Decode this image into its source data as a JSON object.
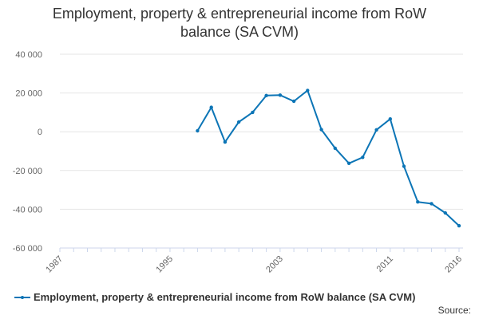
{
  "chart_data": {
    "type": "line",
    "title_lines": [
      "Employment, property & entrepreneurial income from RoW",
      "balance (SA CVM)"
    ],
    "series": [
      {
        "name": "Employment, property & entrepreneurial income from RoW balance (SA CVM)",
        "color": "#0c75b6",
        "points": [
          [
            1997,
            500
          ],
          [
            1998,
            12600
          ],
          [
            1999,
            -5300
          ],
          [
            2000,
            5000
          ],
          [
            2001,
            10000
          ],
          [
            2002,
            18700
          ],
          [
            2003,
            18900
          ],
          [
            2004,
            15700
          ],
          [
            2005,
            21300
          ],
          [
            2006,
            1100
          ],
          [
            2007,
            -8500
          ],
          [
            2008,
            -16300
          ],
          [
            2009,
            -13200
          ],
          [
            2010,
            1000
          ],
          [
            2011,
            6600
          ],
          [
            2012,
            -17800
          ],
          [
            2013,
            -36200
          ],
          [
            2014,
            -37100
          ],
          [
            2015,
            -41900
          ],
          [
            2016,
            -48500
          ]
        ]
      }
    ],
    "xlim": [
      1987,
      2016
    ],
    "ylim": [
      -60000,
      40000
    ],
    "x_ticks": [
      1987,
      1995,
      2003,
      2011,
      2016
    ],
    "x_tick_labels": [
      "1987",
      "1995",
      "2003",
      "2011",
      "2016"
    ],
    "y_ticks": [
      40000,
      20000,
      0,
      -20000,
      -40000,
      -60000
    ],
    "y_tick_labels": [
      "40 000",
      "20 000",
      "0",
      "-20 000",
      "-40 000",
      "-60 000"
    ],
    "grid": "horizontal",
    "legend_position": "bottom"
  },
  "source_label": "Source:"
}
